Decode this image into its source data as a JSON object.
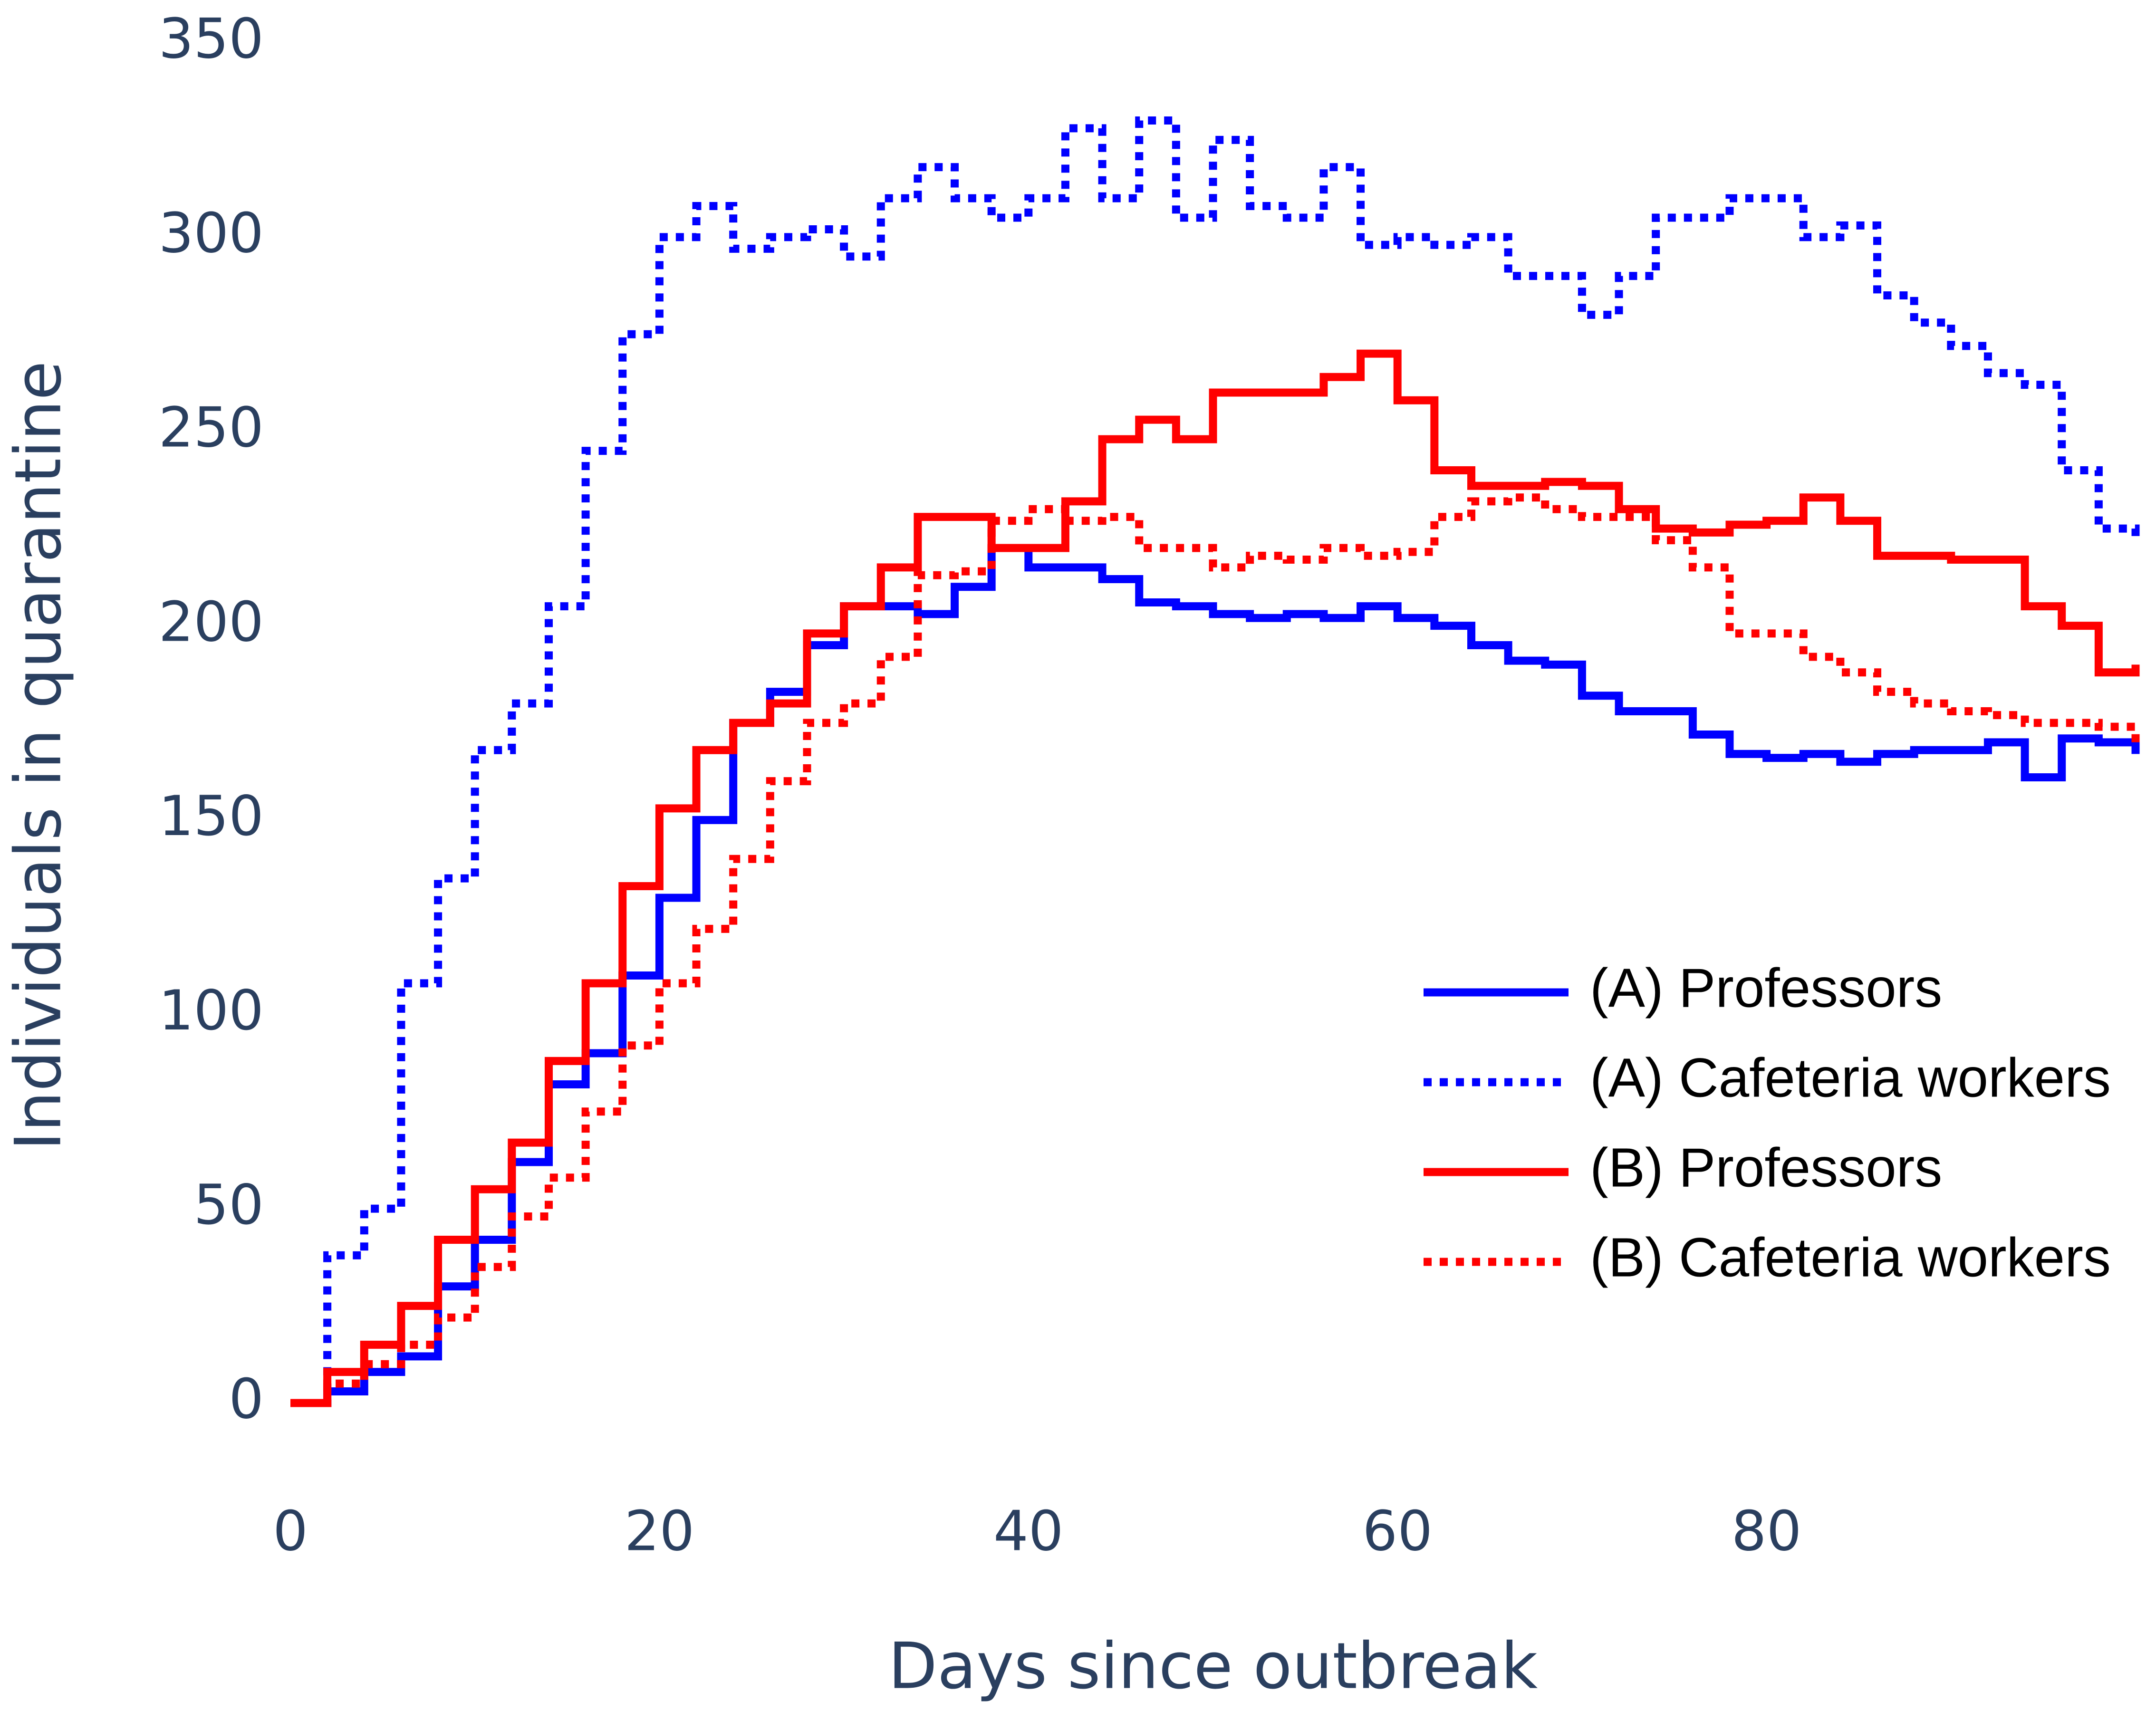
{
  "chart_data": {
    "type": "line",
    "step": true,
    "x_label": "Days since outbreak",
    "y_label": "Individuals in quarantine",
    "xlim": [
      0,
      100
    ],
    "xticks": [
      0,
      20,
      40,
      60,
      80
    ],
    "ylim": [
      0,
      350
    ],
    "yticks": [
      0,
      50,
      100,
      150,
      200,
      250,
      300,
      350
    ],
    "legend": "bottom-right",
    "x": [
      0,
      2,
      4,
      6,
      8,
      10,
      12,
      14,
      16,
      18,
      20,
      22,
      24,
      26,
      28,
      30,
      32,
      34,
      36,
      38,
      40,
      42,
      44,
      46,
      48,
      50,
      52,
      54,
      56,
      58,
      60,
      62,
      64,
      66,
      68,
      70,
      72,
      74,
      76,
      78,
      80,
      82,
      84,
      86,
      88,
      90,
      92,
      94,
      96,
      98,
      100
    ],
    "series": [
      {
        "name": "(A) Professors",
        "color": "#0000ff",
        "dash": "solid",
        "values": [
          0,
          3,
          8,
          12,
          30,
          42,
          62,
          82,
          90,
          110,
          130,
          150,
          175,
          183,
          195,
          205,
          205,
          203,
          210,
          220,
          215,
          215,
          212,
          206,
          205,
          203,
          202,
          203,
          202,
          205,
          202,
          200,
          195,
          191,
          190,
          182,
          178,
          178,
          172,
          167,
          166,
          167,
          165,
          167,
          168,
          168,
          170,
          161,
          171,
          170,
          167
        ]
      },
      {
        "name": "(A) Cafeteria workers",
        "color": "#0000ff",
        "dash": "dot",
        "values": [
          0,
          38,
          50,
          108,
          135,
          168,
          180,
          205,
          245,
          275,
          300,
          308,
          297,
          300,
          302,
          295,
          310,
          318,
          310,
          305,
          310,
          328,
          310,
          330,
          305,
          325,
          308,
          305,
          318,
          298,
          300,
          298,
          300,
          290,
          290,
          280,
          290,
          305,
          305,
          310,
          310,
          300,
          303,
          285,
          278,
          272,
          265,
          262,
          240,
          225,
          222
        ]
      },
      {
        "name": "(B) Professors",
        "color": "#ff0000",
        "dash": "solid",
        "values": [
          0,
          8,
          15,
          25,
          42,
          55,
          67,
          88,
          108,
          133,
          153,
          168,
          175,
          180,
          198,
          205,
          215,
          228,
          228,
          220,
          220,
          232,
          248,
          253,
          248,
          260,
          260,
          260,
          264,
          270,
          258,
          240,
          236,
          236,
          237,
          236,
          230,
          225,
          224,
          226,
          227,
          233,
          227,
          218,
          218,
          217,
          217,
          205,
          200,
          188,
          190
        ]
      },
      {
        "name": "(B) Cafeteria workers",
        "color": "#ff0000",
        "dash": "dot",
        "values": [
          0,
          5,
          10,
          15,
          22,
          35,
          48,
          58,
          75,
          92,
          108,
          122,
          140,
          160,
          175,
          180,
          192,
          213,
          214,
          227,
          230,
          227,
          228,
          220,
          220,
          215,
          218,
          217,
          220,
          218,
          219,
          228,
          232,
          233,
          230,
          228,
          228,
          222,
          215,
          198,
          198,
          192,
          188,
          183,
          180,
          178,
          177,
          175,
          175,
          174,
          168
        ]
      }
    ]
  }
}
